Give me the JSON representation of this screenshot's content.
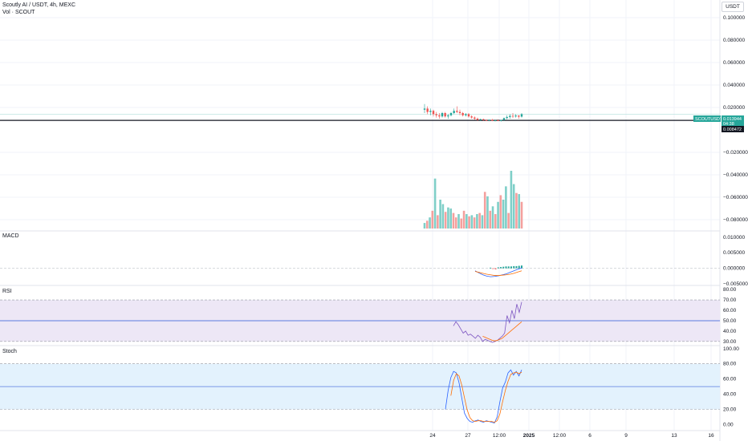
{
  "header": {
    "symbol_line": "Scoutly AI / USDT, 4h, MEXC",
    "volume_line": "Vol · SCOUT",
    "currency": "USDT"
  },
  "colors": {
    "up": "#26a69a",
    "down": "#ef5350",
    "vol_up": "#7fcfc8",
    "vol_down": "#f4a09e",
    "grid": "#f0f3fa",
    "macd_line": "#2962ff",
    "macd_signal": "#ff6d00",
    "rsi_line": "#7e57c2",
    "rsi_band": "#ede7f6",
    "stoch_k": "#2962ff",
    "stoch_d": "#ff6d00",
    "stoch_band": "#e3f2fd"
  },
  "badges": {
    "symbol": "SCOUTUSDT",
    "price": "0.013944",
    "countdown": "04:38",
    "line_price": "0.008472"
  },
  "panes": {
    "macd_title": "MACD",
    "rsi_title": "RSI",
    "stoch_title": "Stoch"
  },
  "x_axis": {
    "ticks": [
      "24",
      "27",
      "12:00",
      "2025",
      "12:00",
      "6",
      "9",
      "13",
      "16"
    ]
  },
  "chart_data": [
    {
      "type": "candlestick",
      "pane": "price",
      "y_ticks": [
        "0.100000",
        "0.080000",
        "0.060000",
        "0.040000",
        "0.020000",
        "−0.020000",
        "−0.040000",
        "−0.060000",
        "−0.080000"
      ],
      "ylim": [
        -0.09,
        0.11
      ],
      "horizontal_line": 0.008472,
      "candles": [
        {
          "o": 0.018,
          "h": 0.023,
          "l": 0.015,
          "c": 0.019
        },
        {
          "o": 0.019,
          "h": 0.021,
          "l": 0.014,
          "c": 0.016
        },
        {
          "o": 0.016,
          "h": 0.019,
          "l": 0.013,
          "c": 0.017
        },
        {
          "o": 0.017,
          "h": 0.018,
          "l": 0.012,
          "c": 0.014
        },
        {
          "o": 0.014,
          "h": 0.016,
          "l": 0.011,
          "c": 0.013
        },
        {
          "o": 0.013,
          "h": 0.015,
          "l": 0.01,
          "c": 0.012
        },
        {
          "o": 0.012,
          "h": 0.016,
          "l": 0.011,
          "c": 0.015
        },
        {
          "o": 0.015,
          "h": 0.016,
          "l": 0.011,
          "c": 0.012
        },
        {
          "o": 0.012,
          "h": 0.014,
          "l": 0.01,
          "c": 0.013
        },
        {
          "o": 0.013,
          "h": 0.016,
          "l": 0.012,
          "c": 0.015
        },
        {
          "o": 0.015,
          "h": 0.019,
          "l": 0.014,
          "c": 0.017
        },
        {
          "o": 0.017,
          "h": 0.021,
          "l": 0.015,
          "c": 0.016
        },
        {
          "o": 0.016,
          "h": 0.018,
          "l": 0.013,
          "c": 0.015
        },
        {
          "o": 0.015,
          "h": 0.016,
          "l": 0.012,
          "c": 0.013
        },
        {
          "o": 0.013,
          "h": 0.015,
          "l": 0.012,
          "c": 0.014
        },
        {
          "o": 0.014,
          "h": 0.015,
          "l": 0.011,
          "c": 0.012
        },
        {
          "o": 0.012,
          "h": 0.013,
          "l": 0.01,
          "c": 0.011
        },
        {
          "o": 0.011,
          "h": 0.012,
          "l": 0.009,
          "c": 0.01
        },
        {
          "o": 0.01,
          "h": 0.011,
          "l": 0.008,
          "c": 0.009
        },
        {
          "o": 0.009,
          "h": 0.01,
          "l": 0.008,
          "c": 0.0095
        },
        {
          "o": 0.0095,
          "h": 0.01,
          "l": 0.008,
          "c": 0.0088
        },
        {
          "o": 0.0088,
          "h": 0.0095,
          "l": 0.0078,
          "c": 0.0085
        },
        {
          "o": 0.0085,
          "h": 0.0095,
          "l": 0.0078,
          "c": 0.009
        },
        {
          "o": 0.009,
          "h": 0.0098,
          "l": 0.0078,
          "c": 0.0082
        },
        {
          "o": 0.0082,
          "h": 0.009,
          "l": 0.0075,
          "c": 0.0085
        },
        {
          "o": 0.0085,
          "h": 0.0095,
          "l": 0.0078,
          "c": 0.008
        },
        {
          "o": 0.008,
          "h": 0.009,
          "l": 0.0075,
          "c": 0.0088
        },
        {
          "o": 0.0088,
          "h": 0.011,
          "l": 0.0082,
          "c": 0.0105
        },
        {
          "o": 0.0105,
          "h": 0.013,
          "l": 0.0095,
          "c": 0.0115
        },
        {
          "o": 0.0115,
          "h": 0.014,
          "l": 0.01,
          "c": 0.0125
        },
        {
          "o": 0.0125,
          "h": 0.015,
          "l": 0.0105,
          "c": 0.012
        },
        {
          "o": 0.012,
          "h": 0.014,
          "l": 0.011,
          "c": 0.0128
        },
        {
          "o": 0.0128,
          "h": 0.013,
          "l": 0.01,
          "c": 0.0118
        },
        {
          "o": 0.0118,
          "h": 0.015,
          "l": 0.011,
          "c": 0.013944
        }
      ]
    },
    {
      "type": "bar",
      "pane": "volume",
      "values": [
        5,
        7,
        10,
        16,
        45,
        12,
        26,
        22,
        15,
        19,
        18,
        14,
        10,
        13,
        9,
        16,
        13,
        11,
        12,
        10,
        13,
        14,
        12,
        33,
        29,
        16,
        20,
        13,
        24,
        30,
        26,
        38,
        14,
        52,
        40,
        32,
        31,
        24
      ],
      "directions": [
        "up",
        "down",
        "up",
        "down",
        "up",
        "down",
        "up",
        "up",
        "down",
        "up",
        "up",
        "down",
        "down",
        "up",
        "down",
        "down",
        "up",
        "down",
        "up",
        "down",
        "up",
        "down",
        "up",
        "down",
        "up",
        "down",
        "up",
        "down",
        "up",
        "down",
        "up",
        "up",
        "down",
        "up",
        "up",
        "down",
        "up",
        "down"
      ]
    },
    {
      "type": "line",
      "pane": "macd",
      "y_ticks": [
        "0.010000",
        "0.005000",
        "0.000000",
        "−0.005000"
      ],
      "ylim": [
        -0.0055,
        0.012
      ],
      "macd": [
        -0.0008,
        -0.0015,
        -0.0021,
        -0.0025,
        -0.0027,
        -0.0026,
        -0.0024,
        -0.0021,
        -0.0018,
        -0.0013,
        -0.0008,
        -0.0003,
        0.0001
      ],
      "signal": [
        -0.001,
        -0.0013,
        -0.0016,
        -0.0019,
        -0.0021,
        -0.0023,
        -0.0023,
        -0.0022,
        -0.0021,
        -0.0019,
        -0.0016,
        -0.0012,
        -0.0008
      ],
      "histogram": [
        0.0002,
        -0.0002,
        -0.0003,
        0.0003,
        0.0004,
        0.0005,
        0.0006,
        0.0006,
        0.0006,
        0.0007,
        0.0007,
        0.0008,
        0.0009
      ]
    },
    {
      "type": "line",
      "pane": "rsi",
      "y_ticks": [
        "80.00",
        "70.00",
        "60.00",
        "50.00",
        "40.00",
        "30.00"
      ],
      "ylim": [
        26,
        84
      ],
      "bands": [
        30,
        50,
        70
      ],
      "rsi": [
        45,
        49,
        46,
        42,
        38,
        40,
        36,
        37,
        35,
        33,
        36,
        34,
        30,
        32,
        31,
        30,
        29,
        30,
        31,
        33,
        35,
        38,
        55,
        48,
        60,
        52,
        66,
        58,
        68
      ],
      "rsi_ma": [
        null,
        null,
        null,
        null,
        null,
        null,
        null,
        null,
        null,
        null,
        null,
        null,
        35,
        34,
        33,
        32,
        31,
        30.5,
        31,
        32,
        33,
        35,
        37,
        39,
        41,
        43,
        45,
        47,
        49
      ]
    },
    {
      "type": "line",
      "pane": "stoch",
      "y_ticks": [
        "100.00",
        "80.00",
        "60.00",
        "40.00",
        "20.00",
        "0.00"
      ],
      "ylim": [
        -8,
        104
      ],
      "bands": [
        20,
        50,
        80
      ],
      "k": [
        20,
        45,
        62,
        70,
        68,
        55,
        35,
        15,
        8,
        4,
        3,
        5,
        6,
        4,
        3,
        5,
        4,
        3,
        2,
        10,
        30,
        48,
        56,
        68,
        72,
        65,
        70,
        64,
        72
      ],
      "d": [
        null,
        null,
        38,
        58,
        67,
        64,
        52,
        35,
        19,
        9,
        5,
        4,
        5,
        5,
        4,
        4,
        4,
        4,
        3,
        5,
        14,
        30,
        45,
        57,
        66,
        68,
        69,
        67,
        69
      ]
    }
  ]
}
